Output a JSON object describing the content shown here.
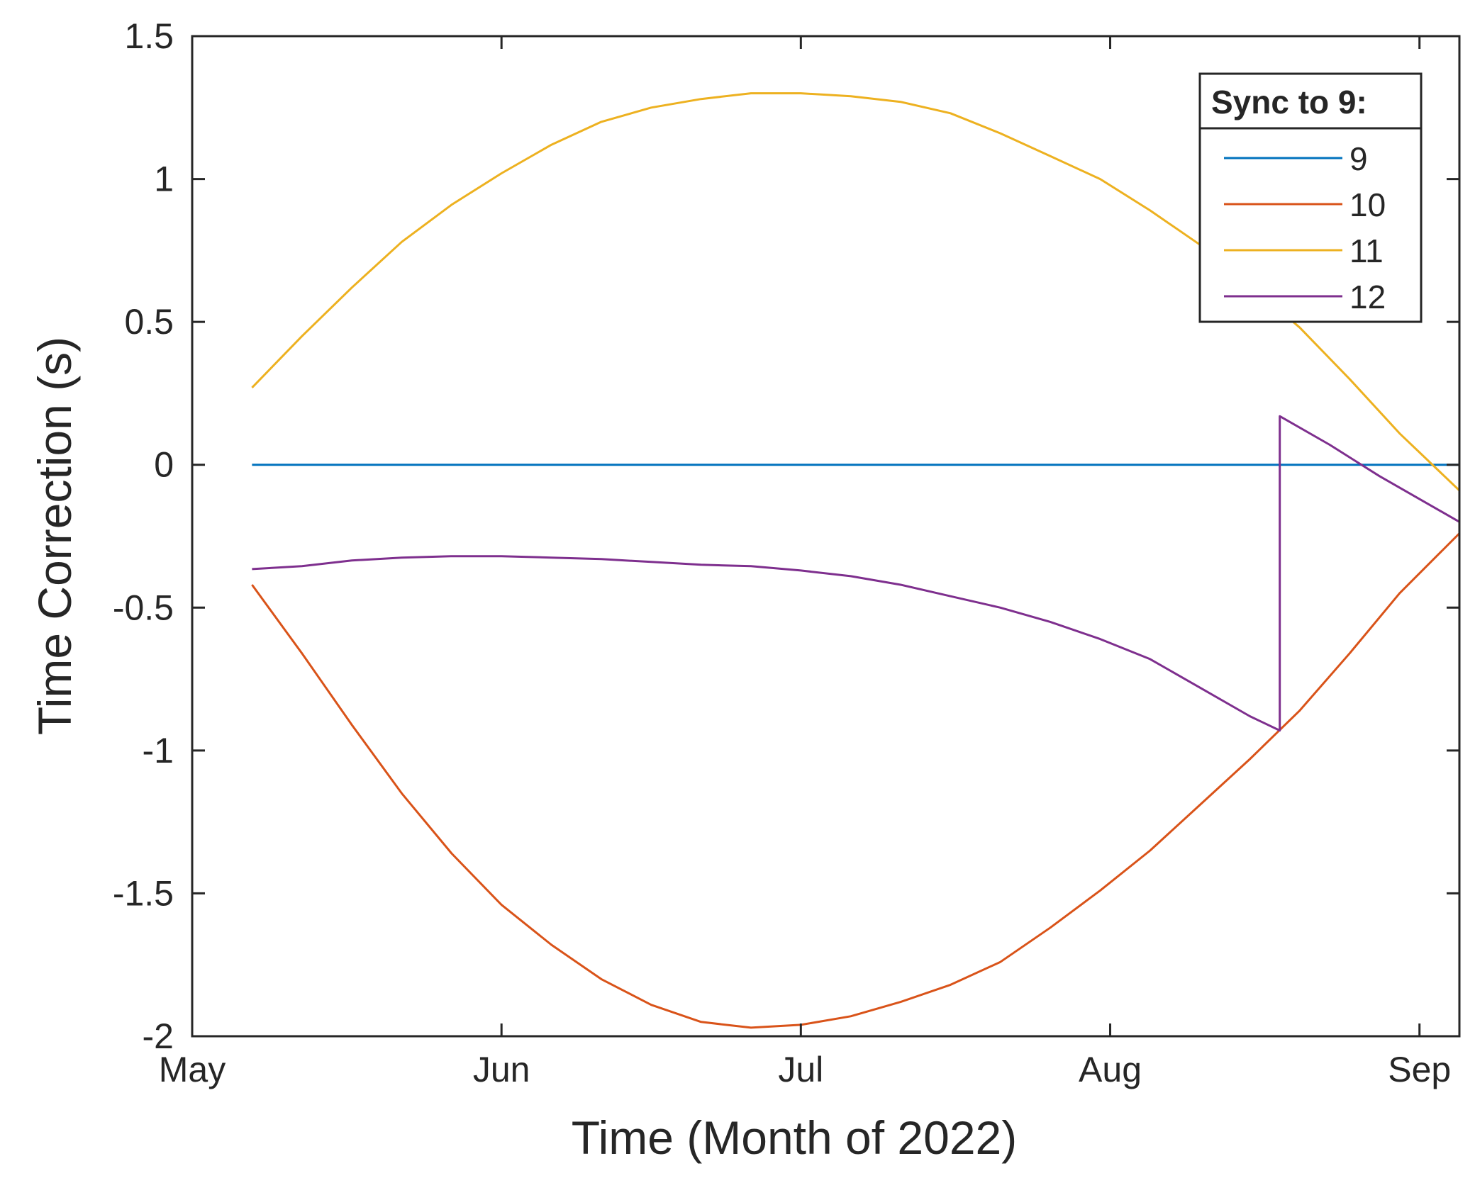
{
  "chart_data": {
    "type": "line",
    "title": "",
    "xlabel": "Time (Month of 2022)",
    "ylabel": "Time Correction (s)",
    "x_ticks": [
      {
        "date": "2022-05-01",
        "label": "May"
      },
      {
        "date": "2022-06-01",
        "label": "Jun"
      },
      {
        "date": "2022-07-01",
        "label": "Jul"
      },
      {
        "date": "2022-08-01",
        "label": "Aug"
      },
      {
        "date": "2022-09-01",
        "label": "Sep"
      }
    ],
    "xlim": [
      "2022-05-01",
      "2022-09-05"
    ],
    "ylim": [
      -2,
      1.5
    ],
    "y_ticks": [
      1.5,
      1,
      0.5,
      0,
      -0.5,
      -1,
      -1.5,
      -2
    ],
    "y_tick_labels": [
      "1.5",
      "1",
      "0.5",
      "0",
      "-0.5",
      "-1",
      "-1.5",
      "-2"
    ],
    "grid": false,
    "legend": {
      "title": "Sync to 9:",
      "placement": "top-right"
    },
    "series": [
      {
        "name": "9",
        "color": "#0072BD",
        "points": [
          [
            "2022-05-07",
            0
          ],
          [
            "2022-09-05",
            0
          ]
        ]
      },
      {
        "name": "10",
        "color": "#D95319",
        "points": [
          [
            "2022-05-07",
            -0.42
          ],
          [
            "2022-05-12",
            -0.66
          ],
          [
            "2022-05-17",
            -0.91
          ],
          [
            "2022-05-22",
            -1.15
          ],
          [
            "2022-05-27",
            -1.36
          ],
          [
            "2022-06-01",
            -1.54
          ],
          [
            "2022-06-06",
            -1.68
          ],
          [
            "2022-06-11",
            -1.8
          ],
          [
            "2022-06-16",
            -1.89
          ],
          [
            "2022-06-21",
            -1.95
          ],
          [
            "2022-06-26",
            -1.97
          ],
          [
            "2022-07-01",
            -1.96
          ],
          [
            "2022-07-06",
            -1.93
          ],
          [
            "2022-07-11",
            -1.88
          ],
          [
            "2022-07-16",
            -1.82
          ],
          [
            "2022-07-21",
            -1.74
          ],
          [
            "2022-07-26",
            -1.62
          ],
          [
            "2022-07-31",
            -1.49
          ],
          [
            "2022-08-05",
            -1.35
          ],
          [
            "2022-08-10",
            -1.19
          ],
          [
            "2022-08-15",
            -1.03
          ],
          [
            "2022-08-20",
            -0.86
          ],
          [
            "2022-08-25",
            -0.66
          ],
          [
            "2022-08-30",
            -0.45
          ],
          [
            "2022-09-05",
            -0.24
          ]
        ]
      },
      {
        "name": "11",
        "color": "#EDB120",
        "points": [
          [
            "2022-05-07",
            0.27
          ],
          [
            "2022-05-12",
            0.45
          ],
          [
            "2022-05-17",
            0.62
          ],
          [
            "2022-05-22",
            0.78
          ],
          [
            "2022-05-27",
            0.91
          ],
          [
            "2022-06-01",
            1.02
          ],
          [
            "2022-06-06",
            1.12
          ],
          [
            "2022-06-11",
            1.2
          ],
          [
            "2022-06-16",
            1.25
          ],
          [
            "2022-06-21",
            1.28
          ],
          [
            "2022-06-26",
            1.3
          ],
          [
            "2022-07-01",
            1.3
          ],
          [
            "2022-07-06",
            1.29
          ],
          [
            "2022-07-11",
            1.27
          ],
          [
            "2022-07-16",
            1.23
          ],
          [
            "2022-07-21",
            1.16
          ],
          [
            "2022-07-26",
            1.08
          ],
          [
            "2022-07-31",
            1.0
          ],
          [
            "2022-08-05",
            0.89
          ],
          [
            "2022-08-10",
            0.77
          ],
          [
            "2022-08-15",
            0.63
          ],
          [
            "2022-08-20",
            0.48
          ],
          [
            "2022-08-25",
            0.3
          ],
          [
            "2022-08-30",
            0.11
          ],
          [
            "2022-09-05",
            -0.09
          ]
        ]
      },
      {
        "name": "12",
        "color": "#7E2F8E",
        "points": [
          [
            "2022-05-07",
            -0.365
          ],
          [
            "2022-05-12",
            -0.355
          ],
          [
            "2022-05-17",
            -0.335
          ],
          [
            "2022-05-22",
            -0.325
          ],
          [
            "2022-05-27",
            -0.32
          ],
          [
            "2022-06-01",
            -0.32
          ],
          [
            "2022-06-06",
            -0.325
          ],
          [
            "2022-06-11",
            -0.33
          ],
          [
            "2022-06-16",
            -0.34
          ],
          [
            "2022-06-21",
            -0.35
          ],
          [
            "2022-06-26",
            -0.355
          ],
          [
            "2022-07-01",
            -0.37
          ],
          [
            "2022-07-06",
            -0.39
          ],
          [
            "2022-07-11",
            -0.42
          ],
          [
            "2022-07-16",
            -0.46
          ],
          [
            "2022-07-21",
            -0.5
          ],
          [
            "2022-07-26",
            -0.55
          ],
          [
            "2022-07-31",
            -0.61
          ],
          [
            "2022-08-05",
            -0.68
          ],
          [
            "2022-08-10",
            -0.78
          ],
          [
            "2022-08-15",
            -0.88
          ],
          [
            "2022-08-18",
            -0.93
          ],
          [
            "2022-08-18",
            0.17
          ],
          [
            "2022-08-23",
            0.07
          ],
          [
            "2022-08-28",
            -0.04
          ],
          [
            "2022-09-05",
            -0.2
          ]
        ]
      }
    ]
  }
}
